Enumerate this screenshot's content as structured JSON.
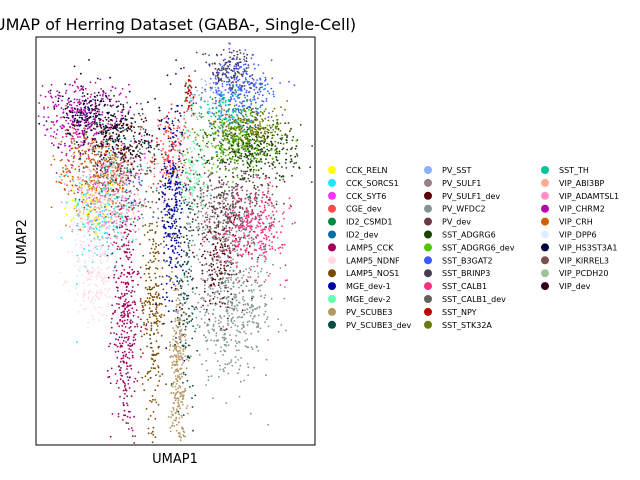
{
  "chart_data": {
    "type": "scatter",
    "title": "UMAP of Herring Dataset (GABA-, Single-Cell)",
    "xlabel": "UMAP1",
    "ylabel": "UMAP2",
    "show_ticks": false,
    "grid": false,
    "legend": {
      "placement": "right",
      "columns": 3
    },
    "series": [
      {
        "name": "CCK_RELN",
        "color": "#ffff00",
        "x": 2.0,
        "y": 6.1,
        "sx": 0.5,
        "sy": 0.4,
        "n": 80
      },
      {
        "name": "CCK_SORCS1",
        "color": "#1ce6ff",
        "x": 2.4,
        "y": 6.0,
        "sx": 0.6,
        "sy": 0.8,
        "n": 180
      },
      {
        "name": "CCK_SYT6",
        "color": "#ff34ff",
        "x": 3.2,
        "y": 7.0,
        "sx": 0.6,
        "sy": 0.8,
        "n": 60
      },
      {
        "name": "CGE_dev",
        "color": "#ff4a46",
        "x": 4.9,
        "y": 7.5,
        "sx": 0.35,
        "sy": 0.5,
        "n": 160
      },
      {
        "name": "ID2_CSMD1",
        "color": "#008941",
        "x": 3.0,
        "y": 7.6,
        "sx": 0.7,
        "sy": 0.5,
        "n": 40
      },
      {
        "name": "ID2_dev",
        "color": "#006fa6",
        "x": 3.4,
        "y": 7.1,
        "sx": 0.6,
        "sy": 0.7,
        "n": 70
      },
      {
        "name": "LAMP5_CCK",
        "color": "#a30059",
        "x": 3.2,
        "y": 3.3,
        "sx": 0.25,
        "sy": 1.6,
        "n": 380
      },
      {
        "name": "LAMP5_NDNF",
        "color": "#ffdbe5",
        "x": 2.1,
        "y": 4.3,
        "sx": 0.4,
        "sy": 0.6,
        "n": 180
      },
      {
        "name": "LAMP5_NOS1",
        "color": "#7a4900",
        "x": 4.2,
        "y": 3.6,
        "sx": 0.2,
        "sy": 1.6,
        "n": 260
      },
      {
        "name": "MGE_dev-1",
        "color": "#0000a6",
        "x": 4.9,
        "y": 6.2,
        "sx": 0.2,
        "sy": 1.4,
        "n": 280
      },
      {
        "name": "MGE_dev-2",
        "color": "#63ffac",
        "x": 5.6,
        "y": 7.0,
        "sx": 0.25,
        "sy": 0.6,
        "n": 110
      },
      {
        "name": "PV_SCUBE3",
        "color": "#b79762",
        "x": 5.1,
        "y": 1.8,
        "sx": 0.15,
        "sy": 1.3,
        "n": 300
      },
      {
        "name": "PV_SCUBE3_dev",
        "color": "#004d43",
        "x": 5.4,
        "y": 4.0,
        "sx": 0.2,
        "sy": 1.4,
        "n": 120
      },
      {
        "name": "PV_SST",
        "color": "#8fb0ff",
        "x": 6.4,
        "y": 9.0,
        "sx": 0.5,
        "sy": 0.3,
        "n": 50
      },
      {
        "name": "PV_SULF1",
        "color": "#997d87",
        "x": 6.3,
        "y": 5.8,
        "sx": 0.6,
        "sy": 0.6,
        "n": 120
      },
      {
        "name": "PV_SULF1_dev",
        "color": "#5a0007",
        "x": 6.6,
        "y": 4.7,
        "sx": 0.45,
        "sy": 0.7,
        "n": 200
      },
      {
        "name": "PV_WFDC2",
        "color": "#809693",
        "x": 7.0,
        "y": 3.6,
        "sx": 0.8,
        "sy": 0.9,
        "n": 520
      },
      {
        "name": "PV_dev",
        "color": "#6a3a4c",
        "x": 6.8,
        "y": 6.4,
        "sx": 0.9,
        "sy": 0.5,
        "n": 180
      },
      {
        "name": "SST_ADGRG6",
        "color": "#1b4400",
        "x": 7.8,
        "y": 7.6,
        "sx": 0.8,
        "sy": 0.4,
        "n": 380
      },
      {
        "name": "SST_ADGRG6_dev",
        "color": "#4fc601",
        "x": 7.2,
        "y": 7.7,
        "sx": 0.7,
        "sy": 0.35,
        "n": 180
      },
      {
        "name": "SST_B3GAT2",
        "color": "#3b5dff",
        "x": 7.3,
        "y": 9.1,
        "sx": 0.6,
        "sy": 0.45,
        "n": 300
      },
      {
        "name": "SST_BRINP3",
        "color": "#4a3b53",
        "x": 6.9,
        "y": 9.7,
        "sx": 0.45,
        "sy": 0.25,
        "n": 120
      },
      {
        "name": "SST_CALB1",
        "color": "#ff2f80",
        "x": 7.8,
        "y": 5.6,
        "sx": 0.6,
        "sy": 0.5,
        "n": 300
      },
      {
        "name": "SST_CALB1_dev",
        "color": "#61615a",
        "x": 6.9,
        "y": 6.0,
        "sx": 0.7,
        "sy": 0.5,
        "n": 200
      },
      {
        "name": "SST_NPY",
        "color": "#ba0900",
        "x": 5.5,
        "y": 9.0,
        "sx": 0.08,
        "sy": 0.35,
        "n": 40
      },
      {
        "name": "SST_STK32A",
        "color": "#6b7900",
        "x": 7.6,
        "y": 8.2,
        "sx": 0.7,
        "sy": 0.3,
        "n": 260
      },
      {
        "name": "SST_TH",
        "color": "#00c2a0",
        "x": 6.8,
        "y": 8.6,
        "sx": 0.5,
        "sy": 0.3,
        "n": 110
      },
      {
        "name": "VIP_ABI3BP",
        "color": "#ffaa92",
        "x": 2.6,
        "y": 6.8,
        "sx": 0.6,
        "sy": 0.6,
        "n": 120
      },
      {
        "name": "VIP_ADAMTSL1",
        "color": "#ff90c9",
        "x": 2.3,
        "y": 6.3,
        "sx": 0.6,
        "sy": 0.6,
        "n": 150
      },
      {
        "name": "VIP_CHRM2",
        "color": "#b903aa",
        "x": 1.6,
        "y": 8.4,
        "sx": 0.8,
        "sy": 0.5,
        "n": 340
      },
      {
        "name": "VIP_CRH",
        "color": "#d16100",
        "x": 2.1,
        "y": 7.2,
        "sx": 0.7,
        "sy": 0.6,
        "n": 260
      },
      {
        "name": "VIP_DPP6",
        "color": "#ddefff",
        "x": 1.9,
        "y": 5.5,
        "sx": 0.5,
        "sy": 0.5,
        "n": 60
      },
      {
        "name": "VIP_HS3ST3A1",
        "color": "#000035",
        "x": 2.2,
        "y": 8.4,
        "sx": 0.7,
        "sy": 0.4,
        "n": 240
      },
      {
        "name": "VIP_KIRREL3",
        "color": "#7b4f4b",
        "x": 2.9,
        "y": 7.1,
        "sx": 0.7,
        "sy": 0.6,
        "n": 180
      },
      {
        "name": "VIP_PCDH20",
        "color": "#a1c299",
        "x": 2.5,
        "y": 6.1,
        "sx": 0.6,
        "sy": 0.6,
        "n": 80
      },
      {
        "name": "VIP_dev",
        "color": "#300018",
        "x": 3.3,
        "y": 7.8,
        "sx": 0.6,
        "sy": 0.4,
        "n": 150
      }
    ]
  }
}
